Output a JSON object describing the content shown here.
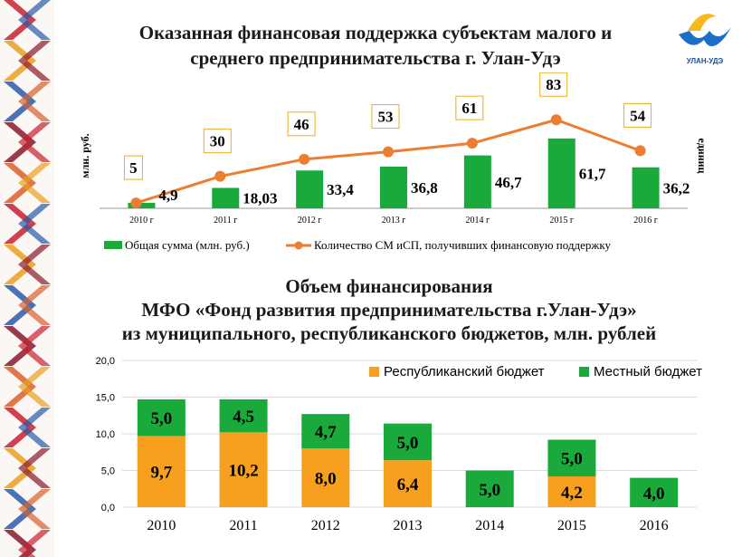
{
  "logo": {
    "text": "УЛАН-УДЭ"
  },
  "chart1_title": {
    "line1": "Оказанная финансовая поддержка субъектам малого и",
    "line2": "среднего предпринимательства г. Улан-Удэ"
  },
  "chart2_title": {
    "line1": "Объем финансирования",
    "line2": "МФО «Фонд развития предпринимательства г.Улан-Удэ»",
    "line3": "из муниципального, республиканского  бюджетов, млн. рублей"
  },
  "chart_data": [
    {
      "type": "bar",
      "categories": [
        "2010 г",
        "2011 г",
        "2012 г",
        "2013 г",
        "2014 г",
        "2015 г",
        "2016 г"
      ],
      "ylabel": "млн. руб.",
      "y2label": "единиц",
      "series": [
        {
          "name": "Общая сумма (млн. руб.)",
          "type": "bar",
          "color": "#1aaa3c",
          "values": [
            4.9,
            18.03,
            33.4,
            36.8,
            46.7,
            61.7,
            36.2
          ],
          "labels": [
            "4,9",
            "18,03",
            "33,4",
            "36,8",
            "46,7",
            "61,7",
            "36,2"
          ]
        },
        {
          "name": "Количество СМ иСП, получивших финансовую поддержку",
          "type": "line",
          "color": "#ed7d31",
          "axis": "secondary",
          "values": [
            5,
            30,
            46,
            53,
            61,
            83,
            54
          ],
          "labels": [
            "5",
            "30",
            "46",
            "53",
            "61",
            "83",
            "54"
          ]
        }
      ],
      "legend": "bottom"
    },
    {
      "type": "bar",
      "stacked": true,
      "categories": [
        "2010",
        "2011",
        "2012",
        "2013",
        "2014",
        "2015",
        "2016"
      ],
      "ylim": [
        0,
        20
      ],
      "yticks": [
        "0,0",
        "5,0",
        "10,0",
        "15,0",
        "20,0"
      ],
      "series": [
        {
          "name": "Республиканский бюджет",
          "color": "#f7a01f",
          "values": [
            9.7,
            10.2,
            8.0,
            6.4,
            0,
            4.2,
            0
          ],
          "labels": [
            "9,7",
            "10,2",
            "8,0",
            "6,4",
            "",
            "4,2",
            ""
          ]
        },
        {
          "name": "Местный бюджет",
          "color": "#1aaa3c",
          "values": [
            5.0,
            4.5,
            4.7,
            5.0,
            5.0,
            5.0,
            4.0
          ],
          "labels": [
            "5,0",
            "4,5",
            "4,7",
            "5,0",
            "5,0",
            "5,0",
            "4,0"
          ]
        }
      ],
      "legend": "top-right"
    }
  ]
}
